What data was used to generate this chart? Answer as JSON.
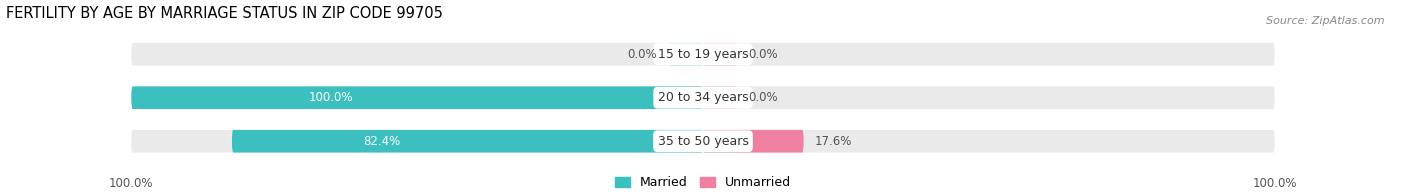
{
  "title": "FERTILITY BY AGE BY MARRIAGE STATUS IN ZIP CODE 99705",
  "source": "Source: ZipAtlas.com",
  "categories": [
    "15 to 19 years",
    "20 to 34 years",
    "35 to 50 years"
  ],
  "married": [
    0.0,
    100.0,
    82.4
  ],
  "unmarried": [
    0.0,
    0.0,
    17.6
  ],
  "married_color": "#3BBFBF",
  "unmarried_color": "#F080A0",
  "married_light": "#A8DCDC",
  "unmarried_light": "#F5B8C8",
  "bar_bg_color": "#EAEAEA",
  "bar_height": 0.52,
  "xlim": 100.0,
  "title_fontsize": 10.5,
  "source_fontsize": 8,
  "label_fontsize": 9,
  "value_fontsize": 8.5,
  "tick_fontsize": 8.5,
  "legend_fontsize": 9,
  "bg_color": "#FFFFFF",
  "label_color_inside": "#FFFFFF",
  "label_color_outside": "#555555"
}
